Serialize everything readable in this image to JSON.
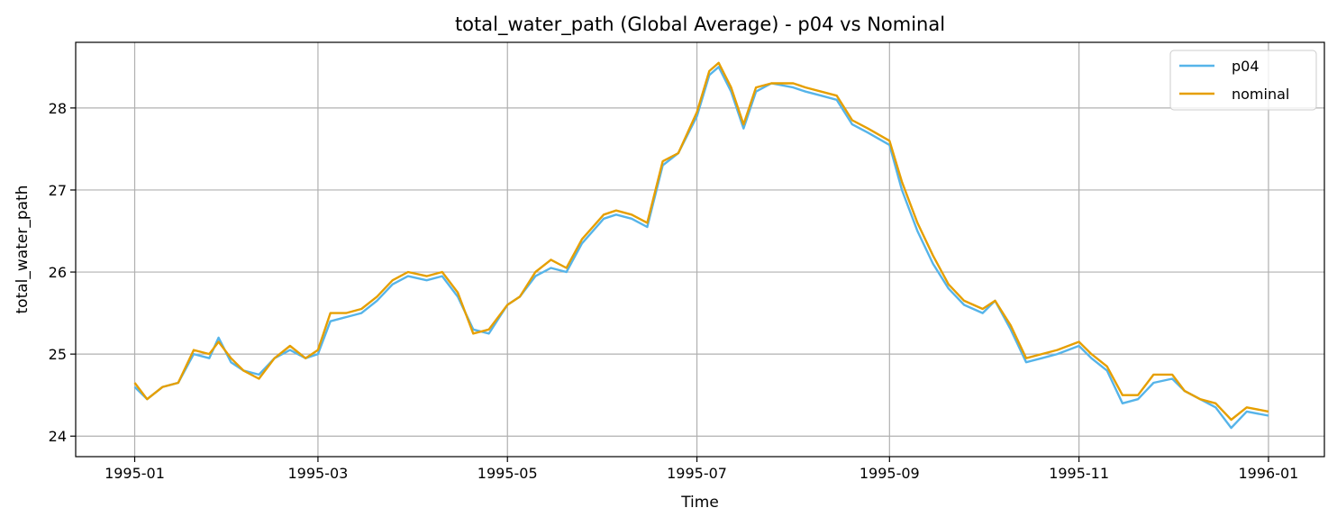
{
  "chart_data": {
    "type": "line",
    "title": "total_water_path (Global Average) - p04 vs Nominal",
    "xlabel": "Time",
    "ylabel": "total_water_path",
    "xlim": [
      "1994-12-13",
      "1996-01-19"
    ],
    "ylim": [
      23.75,
      28.8
    ],
    "grid": true,
    "legend_position": "top-right",
    "xticks": [
      "1995-01",
      "1995-03",
      "1995-05",
      "1995-07",
      "1995-09",
      "1995-11",
      "1996-01"
    ],
    "yticks": [
      24,
      25,
      26,
      27,
      28
    ],
    "x": [
      "1995-01-01",
      "1995-01-05",
      "1995-01-10",
      "1995-01-15",
      "1995-01-20",
      "1995-01-25",
      "1995-01-28",
      "1995-02-01",
      "1995-02-05",
      "1995-02-10",
      "1995-02-15",
      "1995-02-20",
      "1995-02-25",
      "1995-03-01",
      "1995-03-05",
      "1995-03-10",
      "1995-03-15",
      "1995-03-20",
      "1995-03-25",
      "1995-03-30",
      "1995-04-05",
      "1995-04-10",
      "1995-04-15",
      "1995-04-20",
      "1995-04-25",
      "1995-05-01",
      "1995-05-05",
      "1995-05-10",
      "1995-05-15",
      "1995-05-20",
      "1995-05-25",
      "1995-06-01",
      "1995-06-05",
      "1995-06-10",
      "1995-06-15",
      "1995-06-20",
      "1995-06-25",
      "1995-07-01",
      "1995-07-05",
      "1995-07-08",
      "1995-07-12",
      "1995-07-16",
      "1995-07-20",
      "1995-07-25",
      "1995-08-01",
      "1995-08-05",
      "1995-08-10",
      "1995-08-15",
      "1995-08-20",
      "1995-08-25",
      "1995-09-01",
      "1995-09-05",
      "1995-09-10",
      "1995-09-15",
      "1995-09-20",
      "1995-09-25",
      "1995-10-01",
      "1995-10-05",
      "1995-10-10",
      "1995-10-15",
      "1995-10-20",
      "1995-10-25",
      "1995-11-01",
      "1995-11-05",
      "1995-11-10",
      "1995-11-15",
      "1995-11-20",
      "1995-11-25",
      "1995-12-01",
      "1995-12-05",
      "1995-12-10",
      "1995-12-15",
      "1995-12-20",
      "1995-12-25",
      "1996-01-01"
    ],
    "series": [
      {
        "name": "p04",
        "color": "#56B4E9",
        "values": [
          24.6,
          24.45,
          24.6,
          24.65,
          25.0,
          24.95,
          25.2,
          24.9,
          24.8,
          24.75,
          24.95,
          25.05,
          24.95,
          25.0,
          25.4,
          25.45,
          25.5,
          25.65,
          25.85,
          25.95,
          25.9,
          25.95,
          25.7,
          25.3,
          25.25,
          25.6,
          25.7,
          25.95,
          26.05,
          26.0,
          26.35,
          26.65,
          26.7,
          26.65,
          26.55,
          27.3,
          27.45,
          27.9,
          28.4,
          28.5,
          28.2,
          27.75,
          28.2,
          28.3,
          28.25,
          28.2,
          28.15,
          28.1,
          27.8,
          27.7,
          27.55,
          27.0,
          26.5,
          26.1,
          25.8,
          25.6,
          25.5,
          25.65,
          25.3,
          24.9,
          24.95,
          25.0,
          25.1,
          24.95,
          24.8,
          24.4,
          24.45,
          24.65,
          24.7,
          24.55,
          24.45,
          24.35,
          24.1,
          24.3,
          24.25
        ]
      },
      {
        "name": "nominal",
        "color": "#E69F00",
        "values": [
          24.65,
          24.45,
          24.6,
          24.65,
          25.05,
          25.0,
          25.15,
          24.95,
          24.8,
          24.7,
          24.95,
          25.1,
          24.95,
          25.05,
          25.5,
          25.5,
          25.55,
          25.7,
          25.9,
          26.0,
          25.95,
          26.0,
          25.75,
          25.25,
          25.3,
          25.6,
          25.7,
          26.0,
          26.15,
          26.05,
          26.4,
          26.7,
          26.75,
          26.7,
          26.6,
          27.35,
          27.45,
          27.95,
          28.45,
          28.55,
          28.25,
          27.8,
          28.25,
          28.3,
          28.3,
          28.25,
          28.2,
          28.15,
          27.85,
          27.75,
          27.6,
          27.1,
          26.6,
          26.2,
          25.85,
          25.65,
          25.55,
          25.65,
          25.35,
          24.95,
          25.0,
          25.05,
          25.15,
          25.0,
          24.85,
          24.5,
          24.5,
          24.75,
          24.75,
          24.55,
          24.45,
          24.4,
          24.2,
          24.35,
          24.3
        ]
      }
    ]
  }
}
